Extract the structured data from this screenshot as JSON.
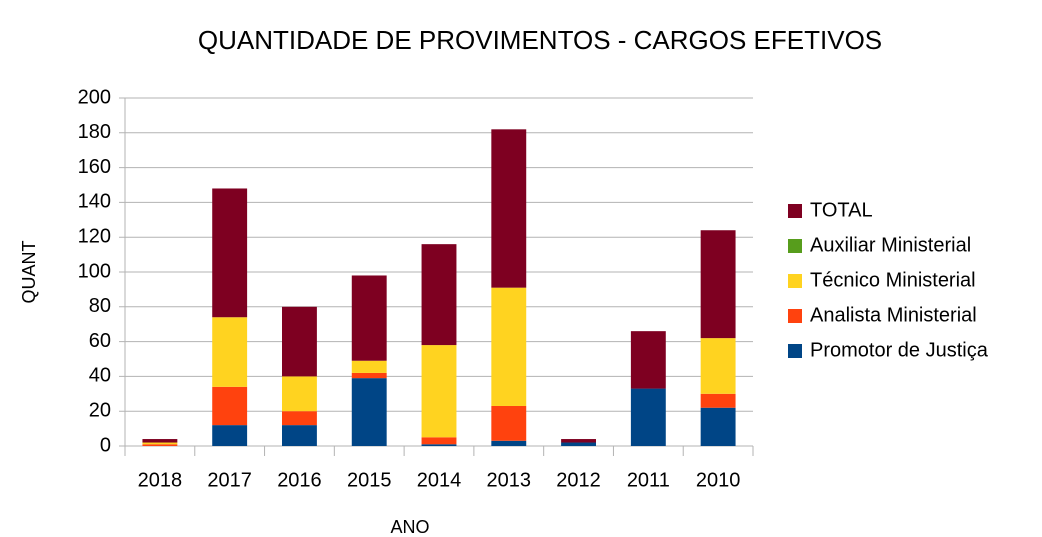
{
  "chart_data": {
    "type": "bar",
    "stacked": true,
    "title": "QUANTIDADE DE PROVIMENTOS - CARGOS EFETIVOS",
    "xlabel": "ANO",
    "ylabel": "QUANT",
    "categories": [
      "2018",
      "2017",
      "2016",
      "2015",
      "2014",
      "2013",
      "2012",
      "2011",
      "2010"
    ],
    "series": [
      {
        "name": "Promotor de Justiça",
        "color": "#004586",
        "values": [
          0,
          12,
          12,
          39,
          1,
          3,
          2,
          33,
          22
        ]
      },
      {
        "name": "Analista Ministerial",
        "color": "#ff420e",
        "values": [
          1,
          22,
          8,
          3,
          4,
          20,
          0,
          0,
          8
        ]
      },
      {
        "name": "Técnico Ministerial",
        "color": "#ffd320",
        "values": [
          1,
          40,
          20,
          7,
          53,
          68,
          0,
          0,
          32
        ]
      },
      {
        "name": "Auxiliar Ministerial",
        "color": "#579d1c",
        "values": [
          0,
          0,
          0,
          0,
          0,
          0,
          0,
          0,
          0
        ]
      },
      {
        "name": "TOTAL",
        "color": "#7e0021",
        "values": [
          2,
          74,
          40,
          49,
          58,
          91,
          2,
          33,
          62
        ]
      }
    ],
    "ylim": [
      0,
      200
    ],
    "yticks": [
      0,
      20,
      40,
      60,
      80,
      100,
      120,
      140,
      160,
      180,
      200
    ],
    "grid": true,
    "legend": "right"
  }
}
